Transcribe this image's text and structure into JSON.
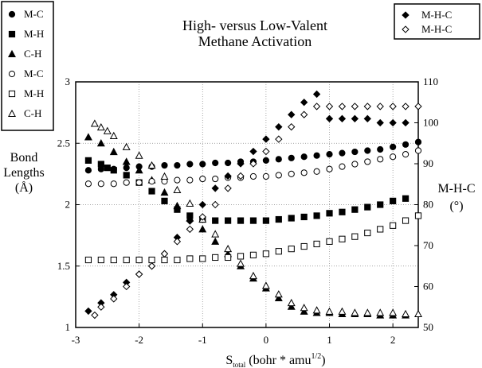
{
  "chart_data": {
    "type": "scatter",
    "title_lines": [
      "High- versus Low-Valent",
      "Methane Activation"
    ],
    "xlabel_main": "S",
    "xlabel_sub": "total",
    "xlabel_rest": " (bohr * amu",
    "xlabel_sup": "1/2",
    "xlabel_close": ")",
    "ylabel_left_lines": [
      "Bond",
      "Lengths",
      "(Å)"
    ],
    "ylabel_right_lines": [
      "M-H-C",
      "(°)"
    ],
    "xlim": [
      -3,
      2.4
    ],
    "ylim_left": [
      1,
      3
    ],
    "ylim_right": [
      50,
      110
    ],
    "x_ticks": [
      "-3",
      "-2",
      "-1",
      "0",
      "1",
      "2"
    ],
    "y_left_ticks": [
      "1",
      "1.5",
      "2",
      "2.5",
      "3"
    ],
    "y_right_ticks": [
      "50",
      "60",
      "70",
      "80",
      "90",
      "100",
      "110"
    ],
    "grid": true,
    "legend_left_position": "top-left",
    "legend_right_position": "top-right",
    "series": [
      {
        "name": "M-C",
        "marker": "filled-circle",
        "axis": "left",
        "x": [
          -2.8,
          -2.6,
          -2.4,
          -2.2,
          -2.0,
          -1.8,
          -1.6,
          -1.4,
          -1.2,
          -1.0,
          -0.8,
          -0.6,
          -0.4,
          -0.2,
          0.0,
          0.2,
          0.4,
          0.6,
          0.8,
          1.0,
          1.2,
          1.4,
          1.6,
          1.8,
          2.0,
          2.2,
          2.4
        ],
        "y": [
          2.28,
          2.29,
          2.29,
          2.3,
          2.31,
          2.31,
          2.32,
          2.32,
          2.33,
          2.33,
          2.34,
          2.34,
          2.35,
          2.35,
          2.36,
          2.37,
          2.38,
          2.39,
          2.4,
          2.41,
          2.42,
          2.43,
          2.44,
          2.45,
          2.47,
          2.49,
          2.51
        ]
      },
      {
        "name": "M-H",
        "marker": "filled-square",
        "axis": "left",
        "x": [
          -2.8,
          -2.6,
          -2.5,
          -2.4,
          -2.2,
          -2.0,
          -1.8,
          -1.6,
          -1.4,
          -1.2,
          -1.0,
          -0.8,
          -0.6,
          -0.4,
          -0.2,
          0.0,
          0.2,
          0.4,
          0.6,
          0.8,
          1.0,
          1.2,
          1.4,
          1.6,
          1.8,
          2.0,
          2.2
        ],
        "y": [
          2.36,
          2.33,
          2.3,
          2.28,
          2.24,
          2.18,
          2.11,
          2.03,
          1.96,
          1.91,
          1.88,
          1.87,
          1.87,
          1.87,
          1.87,
          1.87,
          1.88,
          1.89,
          1.9,
          1.91,
          1.93,
          1.94,
          1.96,
          1.98,
          2.0,
          2.03,
          2.05
        ]
      },
      {
        "name": "C-H",
        "marker": "filled-triangle",
        "axis": "left",
        "x": [
          -2.8,
          -2.6,
          -2.4,
          -2.2,
          -2.0,
          -1.8,
          -1.6,
          -1.4,
          -1.2,
          -1.0,
          -0.8,
          -0.6,
          -0.4,
          -0.2,
          0.0,
          0.2,
          0.4,
          0.6,
          0.8,
          1.0,
          1.2,
          1.4,
          1.6,
          1.8,
          2.0,
          2.2
        ],
        "y": [
          2.55,
          2.5,
          2.43,
          2.35,
          2.28,
          2.2,
          2.1,
          1.99,
          1.89,
          1.8,
          1.7,
          1.6,
          1.5,
          1.4,
          1.32,
          1.24,
          1.17,
          1.13,
          1.12,
          1.12,
          1.11,
          1.11,
          1.11,
          1.1,
          1.1,
          1.1
        ]
      },
      {
        "name": "M-C",
        "marker": "open-circle",
        "axis": "left",
        "x": [
          -2.8,
          -2.6,
          -2.4,
          -2.2,
          -2.0,
          -1.8,
          -1.6,
          -1.4,
          -1.2,
          -1.0,
          -0.8,
          -0.6,
          -0.4,
          -0.2,
          0.0,
          0.2,
          0.4,
          0.6,
          0.8,
          1.0,
          1.2,
          1.4,
          1.6,
          1.8,
          2.0,
          2.2,
          2.4
        ],
        "y": [
          2.17,
          2.17,
          2.17,
          2.18,
          2.18,
          2.19,
          2.19,
          2.2,
          2.2,
          2.21,
          2.21,
          2.22,
          2.22,
          2.23,
          2.23,
          2.24,
          2.25,
          2.26,
          2.27,
          2.29,
          2.31,
          2.33,
          2.35,
          2.37,
          2.39,
          2.41,
          2.44
        ]
      },
      {
        "name": "M-H",
        "marker": "open-square",
        "axis": "left",
        "x": [
          -2.8,
          -2.6,
          -2.4,
          -2.2,
          -2.0,
          -1.8,
          -1.6,
          -1.4,
          -1.2,
          -1.0,
          -0.8,
          -0.6,
          -0.4,
          -0.2,
          0.0,
          0.2,
          0.4,
          0.6,
          0.8,
          1.0,
          1.2,
          1.4,
          1.6,
          1.8,
          2.0,
          2.2,
          2.4
        ],
        "y": [
          1.55,
          1.55,
          1.55,
          1.55,
          1.55,
          1.55,
          1.55,
          1.55,
          1.56,
          1.56,
          1.57,
          1.57,
          1.58,
          1.59,
          1.6,
          1.62,
          1.64,
          1.66,
          1.68,
          1.7,
          1.72,
          1.74,
          1.77,
          1.8,
          1.83,
          1.87,
          1.91
        ]
      },
      {
        "name": "C-H",
        "marker": "open-triangle",
        "axis": "left",
        "x": [
          -2.7,
          -2.6,
          -2.5,
          -2.4,
          -2.2,
          -2.0,
          -1.8,
          -1.6,
          -1.4,
          -1.2,
          -1.0,
          -0.8,
          -0.6,
          -0.4,
          -0.2,
          0.0,
          0.2,
          0.4,
          0.6,
          0.8,
          1.0,
          1.2,
          1.4,
          1.6,
          1.8,
          2.0,
          2.2,
          2.4
        ],
        "y": [
          2.66,
          2.63,
          2.6,
          2.56,
          2.47,
          2.4,
          2.32,
          2.23,
          2.12,
          2.01,
          1.88,
          1.76,
          1.64,
          1.52,
          1.42,
          1.34,
          1.27,
          1.2,
          1.16,
          1.14,
          1.13,
          1.13,
          1.12,
          1.12,
          1.12,
          1.12,
          1.11,
          1.11
        ]
      },
      {
        "name": "M-H-C",
        "marker": "filled-diamond",
        "axis": "right",
        "x": [
          -2.8,
          -2.6,
          -2.4,
          -2.2,
          -2.0,
          -1.8,
          -1.6,
          -1.4,
          -1.2,
          -1.0,
          -0.8,
          -0.6,
          -0.4,
          -0.2,
          0.0,
          0.2,
          0.4,
          0.6,
          0.8,
          1.0,
          1.2,
          1.4,
          1.6,
          1.8,
          2.0,
          2.2
        ],
        "y": [
          54,
          56,
          58,
          61,
          63,
          65,
          68,
          72,
          76,
          80,
          84,
          87,
          90,
          93,
          96,
          99,
          102,
          105,
          107,
          101,
          101,
          101,
          101,
          100,
          100,
          100
        ]
      },
      {
        "name": "M-H-C",
        "marker": "open-diamond",
        "axis": "right",
        "x": [
          -2.7,
          -2.6,
          -2.4,
          -2.2,
          -2.0,
          -1.8,
          -1.6,
          -1.4,
          -1.2,
          -1.0,
          -0.8,
          -0.6,
          -0.4,
          -0.2,
          0.0,
          0.2,
          0.4,
          0.6,
          0.8,
          1.0,
          1.2,
          1.4,
          1.6,
          1.8,
          2.0,
          2.2,
          2.4
        ],
        "y": [
          53,
          55,
          57,
          60,
          63,
          65,
          68,
          71,
          74,
          77,
          80,
          84,
          87,
          90,
          93,
          96,
          99,
          102,
          104,
          104,
          104,
          104,
          104,
          104,
          104,
          104,
          104
        ]
      }
    ]
  }
}
